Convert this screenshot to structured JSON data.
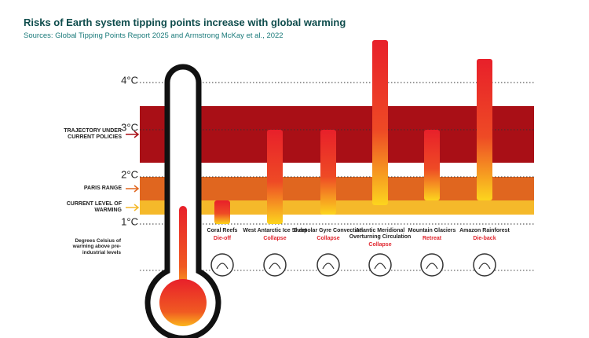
{
  "chart_data": {
    "type": "range-bar",
    "title": "Risks of Earth system tipping points increase with global warming",
    "subtitle": "Sources: Global Tipping Points Report 2025 and Armstrong McKay et al., 2022",
    "y_axis_label": "Degrees Celsius of warming above pre-industrial levels",
    "categories": [
      "Coral Reefs",
      "West Antarctic Ice Sheet",
      "Subpolar Gyre Convection",
      "Atlantic Meridional Overturning Circulation",
      "Mountain Glaciers",
      "Amazon Rainforest"
    ],
    "impacts": [
      "Die-off",
      "Collapse",
      "Collapse",
      "Collapse",
      "Retreat",
      "Die-back"
    ],
    "low": [
      1.0,
      1.0,
      1.2,
      1.4,
      1.5,
      1.5
    ],
    "high": [
      1.5,
      3.0,
      3.0,
      4.9,
      3.0,
      4.5
    ],
    "bands": [
      {
        "label": "TRAJECTORY UNDER CURRENT POLICIES",
        "range": [
          2.3,
          3.5
        ],
        "color": "#a90f16"
      },
      {
        "label": "PARIS RANGE",
        "range": [
          1.5,
          2.0
        ],
        "color": "#e0661f"
      },
      {
        "label": "CURRENT LEVEL OF WARMING",
        "range": [
          1.2,
          1.5
        ],
        "color": "#f5b92a"
      }
    ],
    "ylim": [
      0,
      5.1
    ],
    "yticks": [
      {
        "value": 1,
        "label": "1°C"
      },
      {
        "value": 2,
        "label": "2°C"
      },
      {
        "value": 3,
        "label": "3°C"
      },
      {
        "value": 4,
        "label": "4°C"
      }
    ],
    "grid": true
  }
}
